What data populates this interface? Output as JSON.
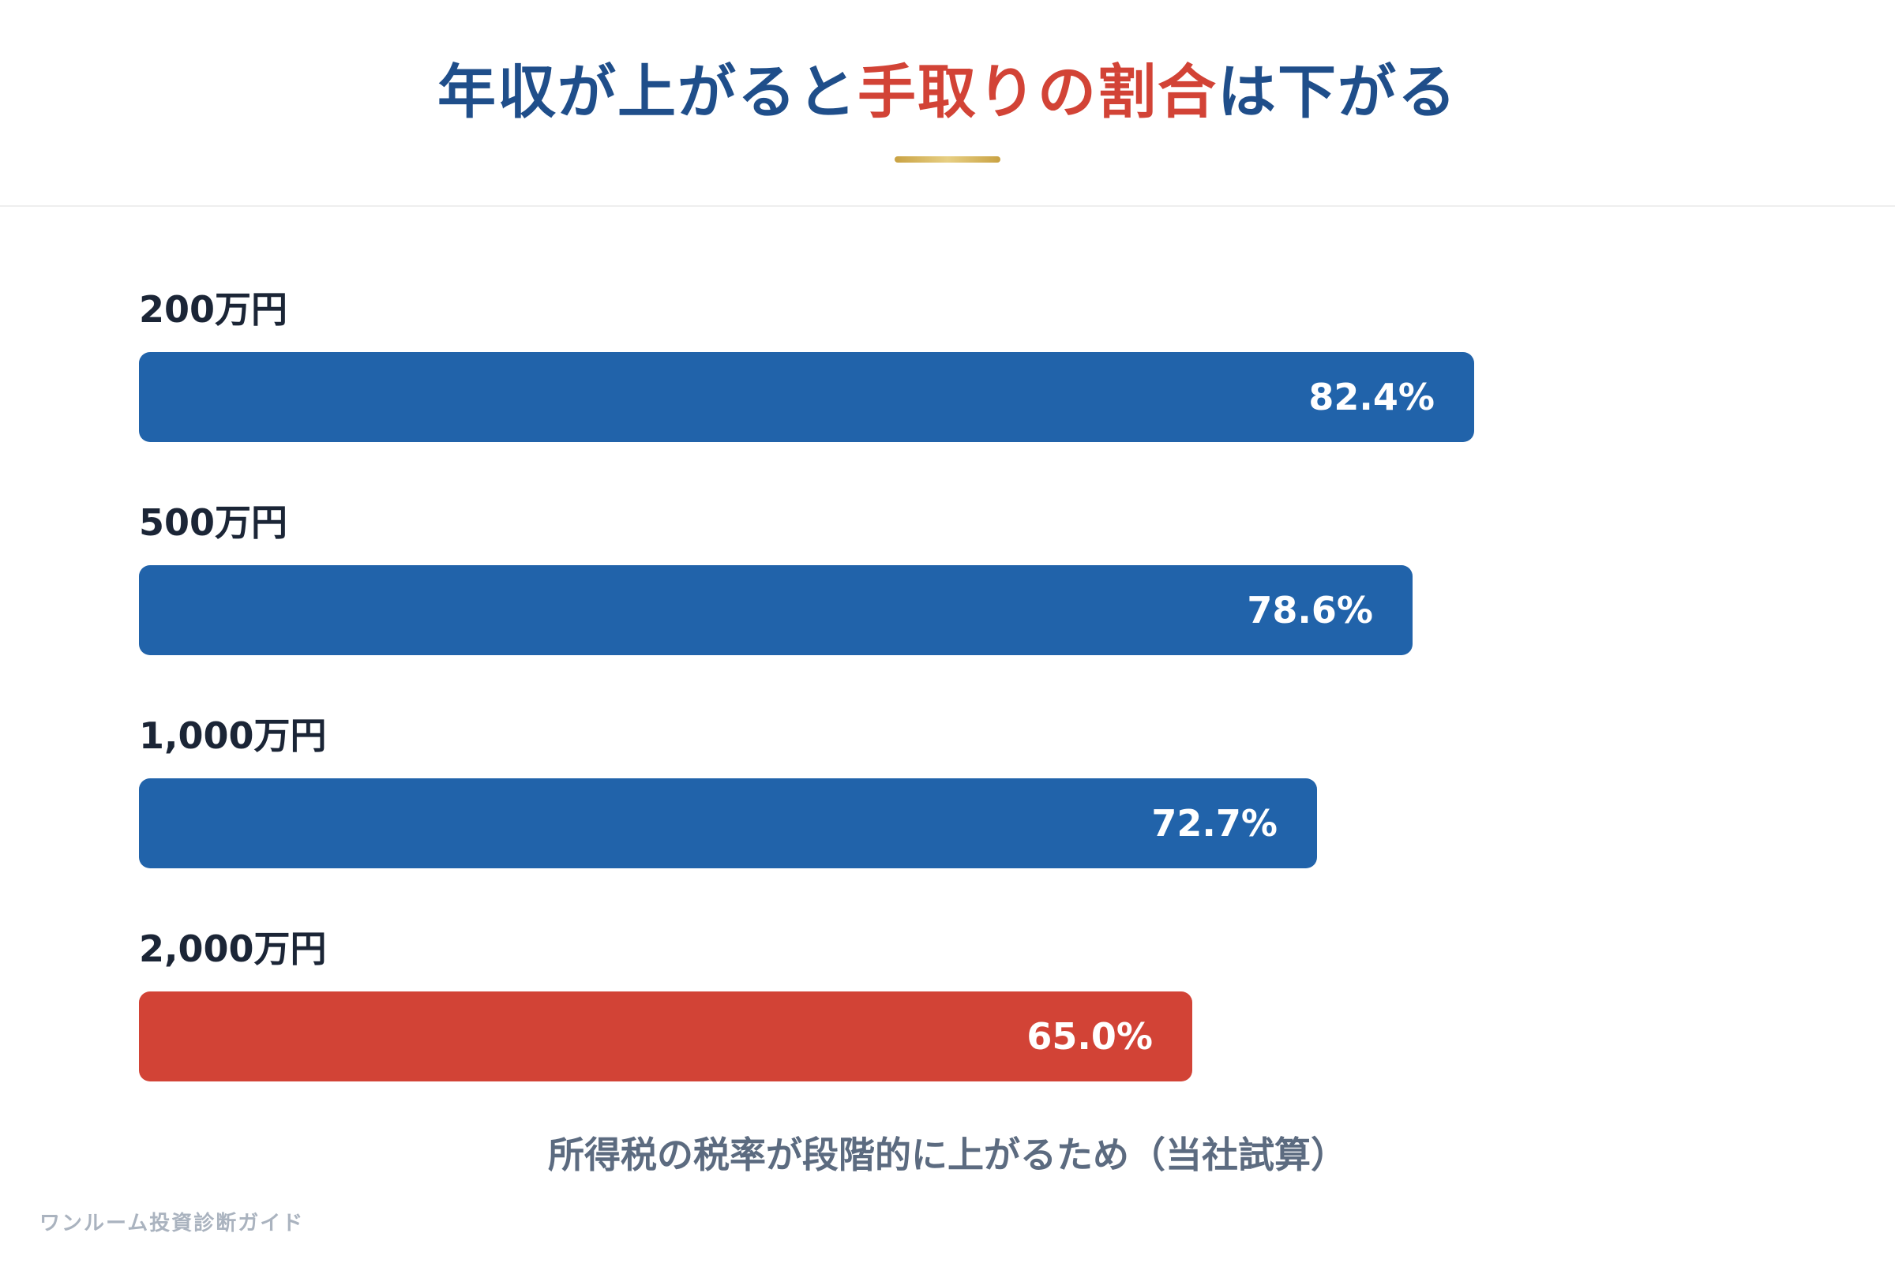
{
  "header": {
    "title_part1": "年収が上がると",
    "title_accent": "手取りの割合",
    "title_part2": "は下がる"
  },
  "colors": {
    "primary_bar": "#2163aa",
    "highlight_bar": "#d24336",
    "title_blue": "#1f4e8a",
    "title_red": "#d24336",
    "underline_gold": "#c9a243"
  },
  "chart_data": {
    "type": "bar",
    "orientation": "horizontal",
    "categories": [
      "200万円",
      "500万円",
      "1,000万円",
      "2,000万円"
    ],
    "values": [
      82.4,
      78.6,
      72.7,
      65.0
    ],
    "value_labels": [
      "82.4%",
      "78.6%",
      "72.7%",
      "65.0%"
    ],
    "highlight_index": 3,
    "xlim": [
      0,
      100
    ],
    "grid": false,
    "legend": "none"
  },
  "note": "所得税の税率が段階的に上がるため（当社試算）",
  "footer": "ワンルーム投資診断ガイド"
}
